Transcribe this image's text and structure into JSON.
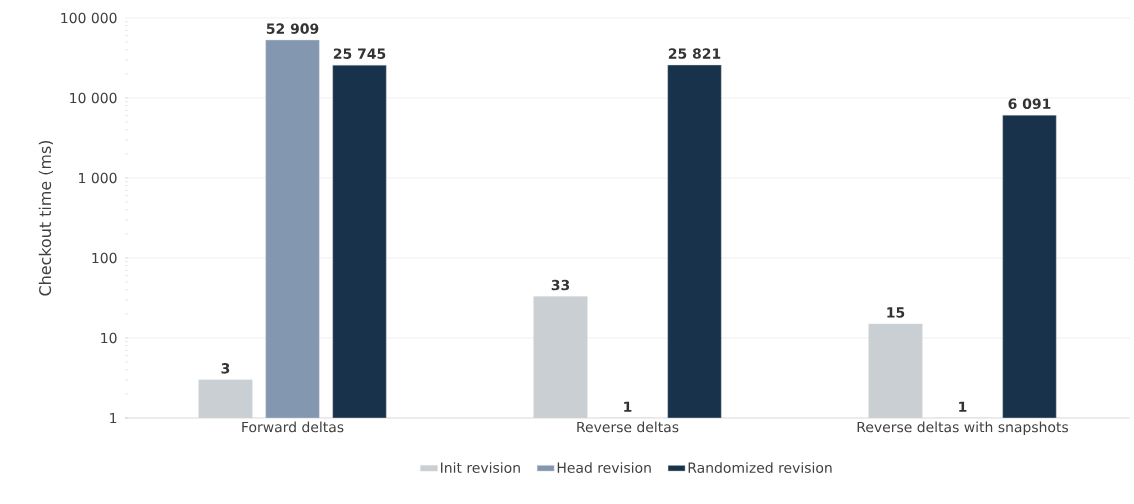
{
  "chart_data": {
    "type": "bar",
    "ylabel": "Checkout time (ms)",
    "log": "y",
    "grid": "y",
    "legend": "bottom",
    "categories": [
      "Forward deltas",
      "Reverse deltas",
      "Reverse deltas with snapshots"
    ],
    "ylim": [
      1,
      100000
    ],
    "yticks": [
      1,
      10,
      100,
      {
        "value": 1000,
        "label": "1 000"
      },
      {
        "value": 10000,
        "label": "10 000"
      },
      {
        "value": 100000,
        "label": "100 000"
      }
    ],
    "series": [
      {
        "name": "Init revision",
        "color": "#c9cfd3",
        "values": [
          3,
          33,
          15
        ],
        "value_labels": [
          "3",
          "33",
          "15"
        ]
      },
      {
        "name": "Head revision",
        "color": "#8497b0",
        "values": [
          52909,
          1,
          1
        ],
        "value_labels": [
          "52 909",
          "1",
          "1"
        ]
      },
      {
        "name": "Randomized revision",
        "color": "#17324a",
        "values": [
          25745,
          25821,
          6091
        ],
        "value_labels": [
          "25 745",
          "25 821",
          "6 091"
        ]
      }
    ]
  }
}
